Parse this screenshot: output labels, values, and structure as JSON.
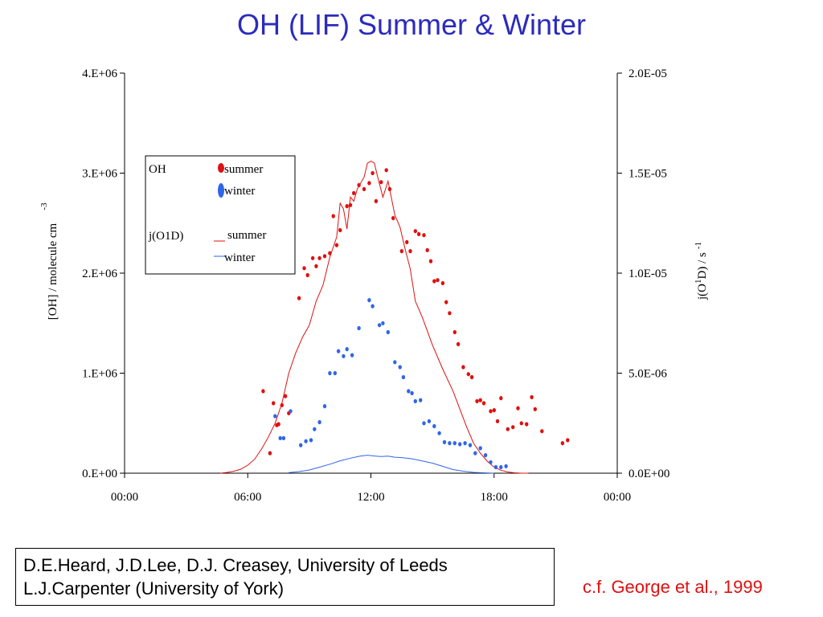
{
  "title": "OH (LIF) Summer & Winter",
  "credits": {
    "line1": "D.E.Heard, J.D.Lee, D.J. Creasey, University of Leeds",
    "line2": "L.J.Carpenter (University of York)"
  },
  "citation": "c.f. George et al., 1999",
  "colors": {
    "summer": "#e01010",
    "winter": "#2f66e8",
    "title": "#2b2bbd"
  },
  "chart_data": {
    "type": "scatter",
    "xlabel": "",
    "x_ticks": [
      "00:00",
      "06:00",
      "12:00",
      "18:00",
      "00:00"
    ],
    "xlim": [
      "00:00",
      "24:00"
    ],
    "y_left": {
      "label": "[OH] / molecule cm",
      "label_superscript": "-3",
      "ticks": [
        "0.E+00",
        "1.E+06",
        "2.E+06",
        "3.E+06",
        "4.E+06"
      ],
      "lim": [
        0,
        4000000
      ]
    },
    "y_right": {
      "label_prefix": "j(O",
      "label_superscript": "1",
      "label_suffix": "D) / s",
      "label_superscript_unit": "-1",
      "ticks": [
        "0.0E+00",
        "5.0E-06",
        "1.0E-05",
        "1.5E-05",
        "2.0E-05"
      ],
      "lim": [
        0,
        2e-05
      ]
    },
    "legend": {
      "oh_header": "OH",
      "j_header": "j(O1D)",
      "summer": "summer",
      "winter": "winter",
      "placement": "upper-left"
    },
    "series": [
      {
        "name": "summer",
        "kind": "points",
        "axis": "left",
        "x": [
          "06:45",
          "07:05",
          "07:15",
          "07:25",
          "07:30",
          "07:40",
          "07:50",
          "08:00",
          "08:30",
          "08:45",
          "08:55",
          "09:10",
          "09:20",
          "09:30",
          "09:45",
          "10:00",
          "10:10",
          "10:20",
          "10:30",
          "10:50",
          "11:00",
          "11:10",
          "11:25",
          "11:40",
          "11:55",
          "12:05",
          "12:15",
          "12:30",
          "12:45",
          "12:55",
          "13:05",
          "13:30",
          "13:45",
          "13:55",
          "14:10",
          "14:20",
          "14:35",
          "14:45",
          "14:55",
          "15:05",
          "15:15",
          "15:30",
          "15:40",
          "15:50",
          "16:05",
          "16:15",
          "16:30",
          "16:45",
          "16:55",
          "17:10",
          "17:20",
          "17:30",
          "17:50",
          "18:00",
          "18:10",
          "18:20",
          "18:40",
          "18:55",
          "19:10",
          "19:20",
          "19:35",
          "19:50",
          "20:00",
          "20:20",
          "21:20",
          "21:35"
        ],
        "y": [
          820000,
          200000,
          700000,
          480000,
          490000,
          680000,
          770000,
          600000,
          1750000,
          2050000,
          1980000,
          2150000,
          2070000,
          2150000,
          2170000,
          2200000,
          2570000,
          2280000,
          2430000,
          2670000,
          2680000,
          2800000,
          2880000,
          2840000,
          2900000,
          3000000,
          2720000,
          2910000,
          3030000,
          2840000,
          2550000,
          2220000,
          2310000,
          2220000,
          2420000,
          2390000,
          2380000,
          2230000,
          2120000,
          1920000,
          1930000,
          1900000,
          1710000,
          1600000,
          1410000,
          1290000,
          1060000,
          990000,
          960000,
          720000,
          730000,
          700000,
          620000,
          630000,
          520000,
          750000,
          440000,
          460000,
          650000,
          500000,
          490000,
          760000,
          640000,
          420000,
          300000,
          330000
        ]
      },
      {
        "name": "winter",
        "kind": "points",
        "axis": "left",
        "x": [
          "07:20",
          "07:35",
          "07:45",
          "08:05",
          "08:35",
          "08:50",
          "09:05",
          "09:15",
          "09:30",
          "09:45",
          "10:00",
          "10:15",
          "10:25",
          "10:40",
          "10:50",
          "11:05",
          "11:25",
          "11:55",
          "12:05",
          "12:25",
          "12:35",
          "12:50",
          "13:10",
          "13:25",
          "13:35",
          "13:50",
          "14:00",
          "14:10",
          "14:25",
          "14:35",
          "14:50",
          "15:05",
          "15:20",
          "15:35",
          "15:50",
          "16:05",
          "16:20",
          "16:35",
          "16:50",
          "17:05",
          "17:20",
          "17:35",
          "17:50",
          "18:05",
          "18:20",
          "18:35"
        ],
        "y": [
          570000,
          350000,
          350000,
          620000,
          280000,
          320000,
          330000,
          440000,
          510000,
          670000,
          1000000,
          1000000,
          1220000,
          1170000,
          1240000,
          1180000,
          1450000,
          1730000,
          1670000,
          1480000,
          1500000,
          1410000,
          1110000,
          1060000,
          960000,
          820000,
          800000,
          720000,
          730000,
          500000,
          520000,
          470000,
          400000,
          310000,
          300000,
          300000,
          290000,
          300000,
          280000,
          200000,
          250000,
          180000,
          110000,
          60000,
          60000,
          70000
        ]
      },
      {
        "name": "summer",
        "kind": "line",
        "axis": "right",
        "x": [
          "04:40",
          "05:00",
          "05:20",
          "05:40",
          "06:00",
          "06:20",
          "06:40",
          "07:00",
          "07:20",
          "07:40",
          "08:00",
          "08:20",
          "08:40",
          "09:00",
          "09:20",
          "09:40",
          "10:00",
          "10:20",
          "10:30",
          "10:40",
          "10:50",
          "11:00",
          "11:10",
          "11:20",
          "11:40",
          "11:50",
          "12:00",
          "12:10",
          "12:20",
          "12:35",
          "12:50",
          "13:10",
          "13:25",
          "13:40",
          "13:55",
          "14:10",
          "14:30",
          "15:00",
          "15:30",
          "16:00",
          "16:20",
          "16:40",
          "17:00",
          "17:20",
          "17:40",
          "18:00",
          "18:20",
          "18:40",
          "19:00",
          "19:20",
          "19:40"
        ],
        "y": [
          0,
          4e-08,
          1e-07,
          2e-07,
          4e-07,
          7e-07,
          1.2e-06,
          1.8e-06,
          2.5e-06,
          3.5e-06,
          5e-06,
          6e-06,
          6.8e-06,
          7.4e-06,
          8.6e-06,
          9.4e-06,
          1.08e-05,
          1.18e-05,
          1.35e-05,
          1.32e-05,
          1.22e-05,
          1.38e-05,
          1.36e-05,
          1.42e-05,
          1.48e-05,
          1.55e-05,
          1.56e-05,
          1.55e-05,
          1.48e-05,
          1.38e-05,
          1.46e-05,
          1.29e-05,
          1.23e-05,
          1.12e-05,
          1.02e-05,
          8.6e-06,
          7.8e-06,
          6.4e-06,
          5.2e-06,
          4.1e-06,
          3.2e-06,
          2.3e-06,
          1.5e-06,
          1e-06,
          6e-07,
          3e-07,
          1.5e-07,
          6e-08,
          2e-08,
          0,
          0
        ]
      },
      {
        "name": "winter",
        "kind": "line",
        "axis": "right",
        "x": [
          "08:00",
          "08:30",
          "09:00",
          "09:30",
          "10:00",
          "10:30",
          "11:00",
          "11:30",
          "11:50",
          "12:10",
          "12:30",
          "12:50",
          "13:10",
          "13:30",
          "14:00",
          "14:30",
          "15:00",
          "15:30",
          "16:00",
          "16:30",
          "17:00",
          "17:30",
          "18:00"
        ],
        "y": [
          3e-08,
          8e-08,
          1.6e-07,
          3e-07,
          4.5e-07,
          6.2e-07,
          7.5e-07,
          8.6e-07,
          9e-07,
          8.6e-07,
          8.3e-07,
          8.5e-07,
          8e-07,
          7.8e-07,
          7.2e-07,
          6.1e-07,
          5e-07,
          3.4e-07,
          1.8e-07,
          1e-07,
          4e-08,
          2e-08,
          0
        ]
      }
    ]
  }
}
